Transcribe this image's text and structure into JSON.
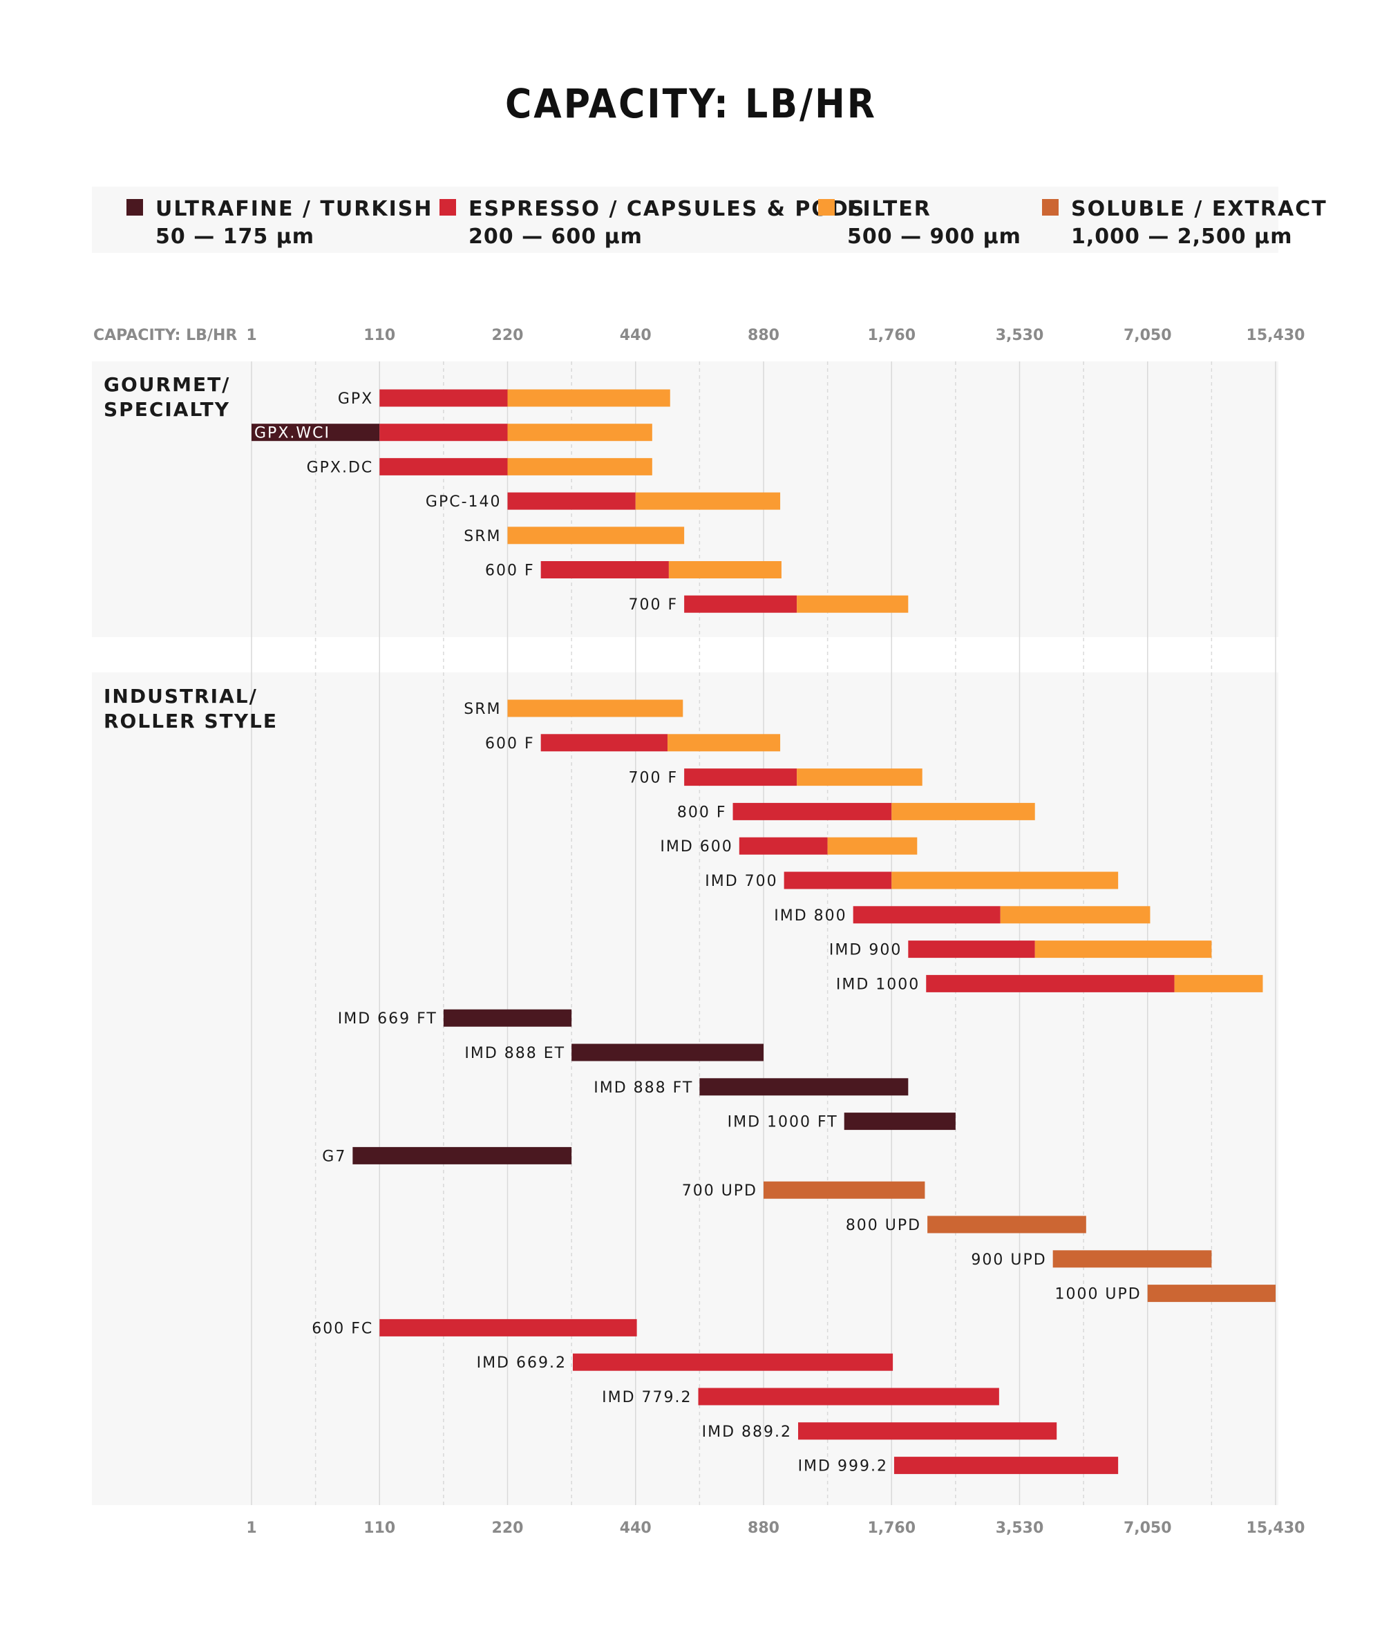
{
  "title": "CAPACITY: LB/HR",
  "colors": {
    "ultrafine": "#4a1820",
    "espresso": "#d32734",
    "filter": "#fa9b32",
    "soluble": "#cc6633",
    "panel": "#f7f7f7",
    "grid": "#d9d9d9"
  },
  "legend": [
    {
      "key": "ultrafine",
      "name": "ULTRAFINE / TURKISH",
      "range": "50 — 175 µm"
    },
    {
      "key": "espresso",
      "name": "ESPRESSO / CAPSULES & PODS",
      "range": "200 — 600 µm"
    },
    {
      "key": "filter",
      "name": "FILTER",
      "range": "500 — 900 µm"
    },
    {
      "key": "soluble",
      "name": "SOLUBLE / EXTRACT",
      "range": "1,000 — 2,500 µm"
    }
  ],
  "chart_data": {
    "type": "bar",
    "orientation": "horizontal-range",
    "x_axis_label": "CAPACITY: LB/HR",
    "x_ticks": [
      "1",
      "110",
      "220",
      "440",
      "880",
      "1,760",
      "3,530",
      "7,050",
      "15,430"
    ],
    "x_tick_scale": "each labeled tick is one equal step; values between ticks are interpolated in tick-index units (0 = 1, 8 = 15,430)",
    "grid": true,
    "legend_position": "top",
    "groups": [
      {
        "name": "GOURMET/\nSPECIALTY",
        "name_lines": [
          "GOURMET/",
          "SPECIALTY"
        ],
        "rows": [
          {
            "label": "GPX",
            "segments": [
              {
                "type": "espresso",
                "from": 1.0,
                "to": 2.0
              },
              {
                "type": "filter",
                "from": 2.0,
                "to": 3.27
              }
            ]
          },
          {
            "label": "GPX.WCI",
            "label_inside": true,
            "segments": [
              {
                "type": "ultrafine",
                "from": 0.0,
                "to": 1.0
              },
              {
                "type": "espresso",
                "from": 1.0,
                "to": 2.0
              },
              {
                "type": "filter",
                "from": 2.0,
                "to": 3.13
              }
            ]
          },
          {
            "label": "GPX.DC",
            "segments": [
              {
                "type": "espresso",
                "from": 1.0,
                "to": 2.0
              },
              {
                "type": "filter",
                "from": 2.0,
                "to": 3.13
              }
            ]
          },
          {
            "label": "GPC-140",
            "segments": [
              {
                "type": "espresso",
                "from": 2.0,
                "to": 3.0
              },
              {
                "type": "filter",
                "from": 3.0,
                "to": 4.13
              }
            ]
          },
          {
            "label": "SRM",
            "segments": [
              {
                "type": "filter",
                "from": 2.0,
                "to": 3.38
              }
            ]
          },
          {
            "label": "600 F",
            "segments": [
              {
                "type": "espresso",
                "from": 2.26,
                "to": 3.26
              },
              {
                "type": "filter",
                "from": 3.26,
                "to": 4.14
              }
            ]
          },
          {
            "label": "700 F",
            "segments": [
              {
                "type": "espresso",
                "from": 3.38,
                "to": 4.26
              },
              {
                "type": "filter",
                "from": 4.26,
                "to": 5.13
              }
            ]
          }
        ]
      },
      {
        "name": "INDUSTRIAL/\nROLLER STYLE",
        "name_lines": [
          "INDUSTRIAL/",
          "ROLLER STYLE"
        ],
        "rows": [
          {
            "label": "SRM",
            "segments": [
              {
                "type": "filter",
                "from": 2.0,
                "to": 3.37
              }
            ]
          },
          {
            "label": "600 F",
            "segments": [
              {
                "type": "espresso",
                "from": 2.26,
                "to": 3.25
              },
              {
                "type": "filter",
                "from": 3.25,
                "to": 4.13
              }
            ]
          },
          {
            "label": "700 F",
            "segments": [
              {
                "type": "espresso",
                "from": 3.38,
                "to": 4.26
              },
              {
                "type": "filter",
                "from": 4.26,
                "to": 5.24
              }
            ]
          },
          {
            "label": "800 F",
            "segments": [
              {
                "type": "espresso",
                "from": 3.76,
                "to": 5.0
              },
              {
                "type": "filter",
                "from": 5.0,
                "to": 6.12
              }
            ]
          },
          {
            "label": "IMD 600",
            "segments": [
              {
                "type": "espresso",
                "from": 3.81,
                "to": 4.5
              },
              {
                "type": "filter",
                "from": 4.5,
                "to": 5.2
              }
            ]
          },
          {
            "label": "IMD 700",
            "segments": [
              {
                "type": "espresso",
                "from": 4.16,
                "to": 5.0
              },
              {
                "type": "filter",
                "from": 5.0,
                "to": 6.77
              }
            ]
          },
          {
            "label": "IMD 800",
            "segments": [
              {
                "type": "espresso",
                "from": 4.7,
                "to": 5.85
              },
              {
                "type": "filter",
                "from": 5.85,
                "to": 7.02
              }
            ]
          },
          {
            "label": "IMD 900",
            "segments": [
              {
                "type": "espresso",
                "from": 5.13,
                "to": 6.12
              },
              {
                "type": "filter",
                "from": 6.12,
                "to": 7.5
              }
            ]
          },
          {
            "label": "IMD 1000",
            "segments": [
              {
                "type": "espresso",
                "from": 5.27,
                "to": 7.21
              },
              {
                "type": "filter",
                "from": 7.21,
                "to": 7.9
              }
            ]
          },
          {
            "label": "IMD 669 FT",
            "segments": [
              {
                "type": "ultrafine",
                "from": 1.5,
                "to": 2.5
              }
            ]
          },
          {
            "label": "IMD 888 ET",
            "segments": [
              {
                "type": "ultrafine",
                "from": 2.5,
                "to": 4.0
              }
            ]
          },
          {
            "label": "IMD 888 FT",
            "segments": [
              {
                "type": "ultrafine",
                "from": 3.5,
                "to": 5.13
              }
            ]
          },
          {
            "label": "IMD 1000 FT",
            "segments": [
              {
                "type": "ultrafine",
                "from": 4.63,
                "to": 5.5
              }
            ]
          },
          {
            "label": "G7",
            "segments": [
              {
                "type": "ultrafine",
                "from": 0.79,
                "to": 2.5
              }
            ]
          },
          {
            "label": "700 UPD",
            "segments": [
              {
                "type": "soluble",
                "from": 4.0,
                "to": 5.26
              }
            ]
          },
          {
            "label": "800 UPD",
            "segments": [
              {
                "type": "soluble",
                "from": 5.28,
                "to": 6.52
              }
            ]
          },
          {
            "label": "900 UPD",
            "segments": [
              {
                "type": "soluble",
                "from": 6.26,
                "to": 7.5
              }
            ]
          },
          {
            "label": "1000 UPD",
            "segments": [
              {
                "type": "soluble",
                "from": 7.0,
                "to": 8.0
              }
            ]
          },
          {
            "label": "600 FC",
            "segments": [
              {
                "type": "espresso",
                "from": 1.0,
                "to": 3.01
              }
            ]
          },
          {
            "label": "IMD 669.2",
            "segments": [
              {
                "type": "espresso",
                "from": 2.51,
                "to": 5.01
              }
            ]
          },
          {
            "label": "IMD 779.2",
            "segments": [
              {
                "type": "espresso",
                "from": 3.49,
                "to": 5.84
              }
            ]
          },
          {
            "label": "IMD 889.2",
            "segments": [
              {
                "type": "espresso",
                "from": 4.27,
                "to": 6.29
              }
            ]
          },
          {
            "label": "IMD 999.2",
            "segments": [
              {
                "type": "espresso",
                "from": 5.02,
                "to": 6.77
              }
            ]
          }
        ]
      }
    ]
  }
}
